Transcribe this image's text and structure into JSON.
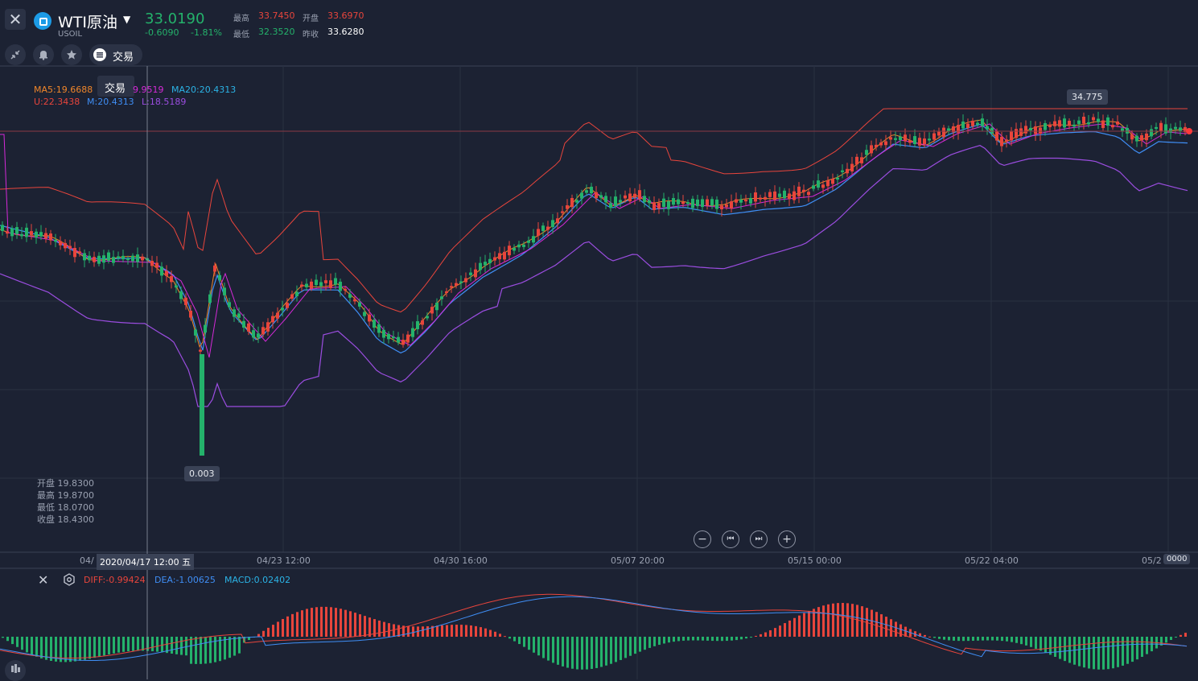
{
  "header": {
    "symbol_name": "WTI原油",
    "symbol_code": "USOIL",
    "last_price": "33.0190",
    "change_abs": "-0.6090",
    "change_pct": "-1.81%",
    "high_label": "最高",
    "high_value": "33.7450",
    "open_label": "开盘",
    "open_value": "33.6970",
    "low_label": "最低",
    "low_value": "32.3520",
    "prev_close_label": "昨收",
    "prev_close_value": "33.6280"
  },
  "toolbar": {
    "trade_label": "交易",
    "tooltip": "交易"
  },
  "indicators": {
    "ma5": "MA5:19.6688",
    "ma10": "9.9519",
    "ma20": "MA20:20.4313",
    "boll_u": "U:22.3438",
    "boll_m": "M:20.4313",
    "boll_l": "L:18.5189"
  },
  "ohlc_box": {
    "open": "开盘 19.8300",
    "high": "最高 19.8700",
    "low": "最低 18.0700",
    "close": "收盘 18.4300"
  },
  "tags": {
    "max_price": "34.775",
    "min_price": "0.003"
  },
  "xaxis": {
    "crosshair_date": "2020/04/17 12:00 五",
    "left_cut": "04/",
    "labels": [
      "04/23 12:00",
      "04/30 16:00",
      "05/07 20:00",
      "05/15 00:00",
      "05/22 04:00",
      "05/2"
    ],
    "right_tag": "0000"
  },
  "macd": {
    "diff": "DIFF:-0.99424",
    "dea": "DEA:-1.00625",
    "macd": "MACD:0.02402"
  },
  "colors": {
    "up": "#e8453c",
    "down": "#24b26b",
    "ma5": "#f0862a",
    "ma10": "#d52ad8",
    "ma20": "#2bb3e6",
    "boll_u": "#e8453c",
    "boll_m": "#3f8ef5",
    "boll_l": "#9b4de0"
  },
  "icons": {
    "close": "close-icon",
    "collapse": "collapse-icon",
    "alert": "bell-icon",
    "favorite": "star-icon",
    "trade": "list-icon",
    "settings": "gear-icon",
    "layers": "candles-icon"
  }
}
